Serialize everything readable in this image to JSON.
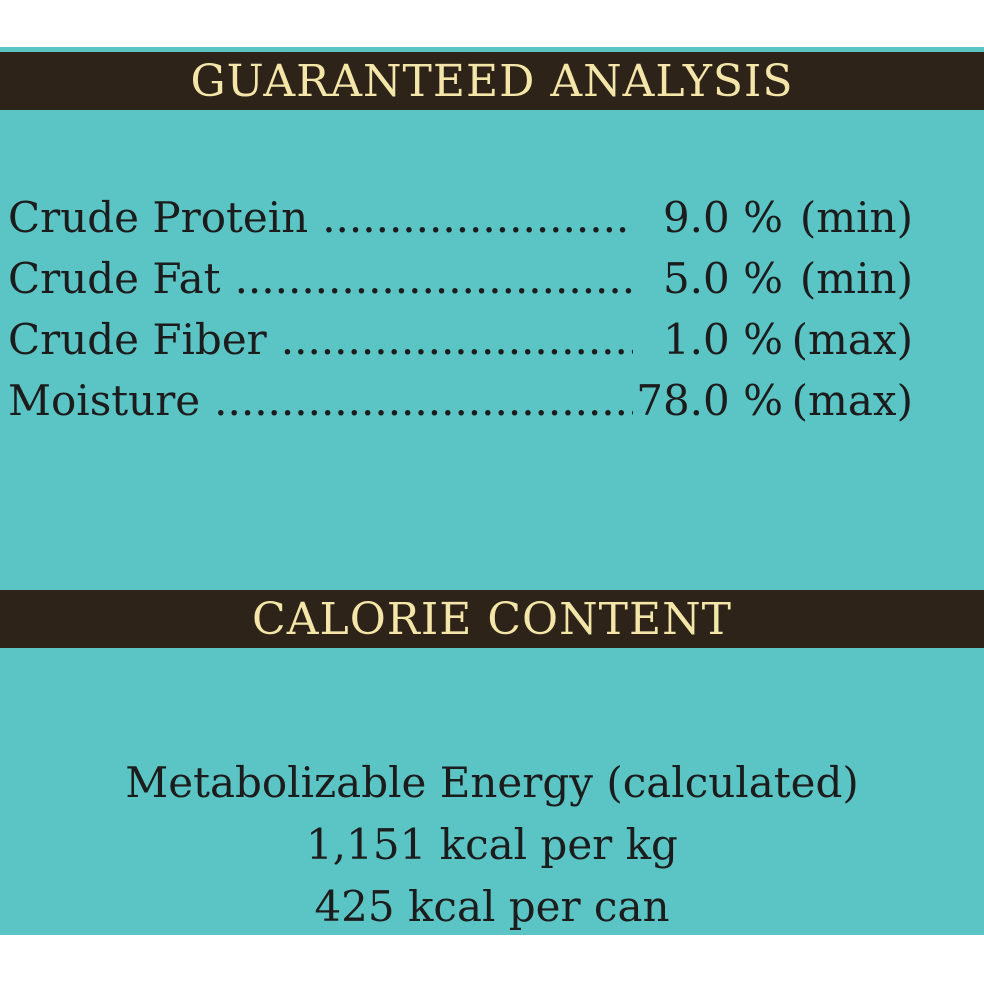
{
  "guaranteed_analysis": {
    "heading": "GUARANTEED ANALYSIS",
    "rows": [
      {
        "nutrient": "Crude Protein",
        "amount": "9.0 %",
        "qualifier": "(min)"
      },
      {
        "nutrient": "Crude Fat",
        "amount": "5.0 %",
        "qualifier": "(min)"
      },
      {
        "nutrient": "Crude Fiber",
        "amount": "1.0 %",
        "qualifier": "(max)"
      },
      {
        "nutrient": "Moisture",
        "amount": "78.0 %",
        "qualifier": "(max)"
      }
    ]
  },
  "calorie_content": {
    "heading": "CALORIE CONTENT",
    "lines": [
      "Metabolizable Energy (calculated)",
      "1,151 kcal per kg",
      "425 kcal per can"
    ]
  },
  "colors": {
    "panel_background": "#5bc4c5",
    "band_background": "#2e2318",
    "band_text": "#f3e6a8",
    "body_text": "#1c1c1c"
  }
}
